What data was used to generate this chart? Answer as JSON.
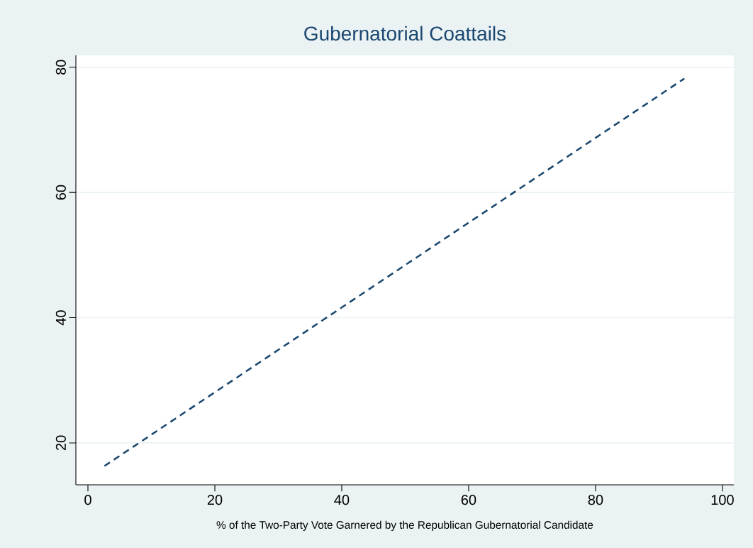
{
  "chart_data": {
    "type": "line",
    "title": "Gubernatorial Coattails",
    "xlabel": "% of the Two-Party Vote Garnered by the Republican Gubernatorial Candidate",
    "x": [
      2.6,
      94.0
    ],
    "series": [
      {
        "color": "#1a476f",
        "values": [
          16.3,
          78.2
        ]
      }
    ],
    "xlim": [
      -1.9,
      101.8
    ],
    "ylim": [
      13.3,
      81.9
    ],
    "xticks": [
      0,
      20,
      40,
      60,
      80,
      100
    ],
    "yticks": [
      20,
      40,
      60,
      80
    ],
    "grid": "y",
    "marker": "none",
    "line_style": "dashed"
  }
}
